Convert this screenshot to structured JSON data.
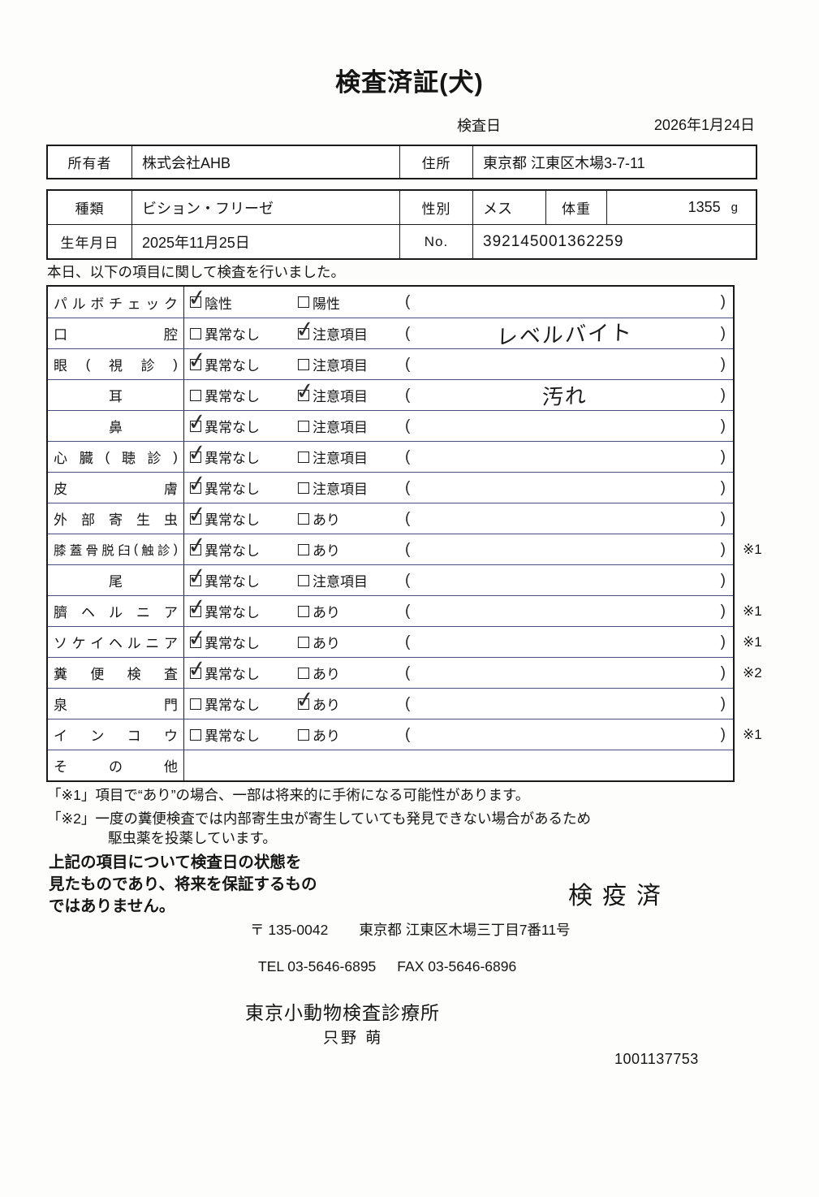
{
  "page": {
    "title": "検査済証(犬)",
    "inspection_date_label": "検査日",
    "inspection_date_value": "2026年1月24日"
  },
  "owner": {
    "owner_label": "所有者",
    "owner_value": "株式会社AHB",
    "address_label": "住所",
    "address_value": "東京都 江東区木場3-7-11"
  },
  "pet": {
    "breed_label": "種類",
    "breed_value": "ビション・フリーゼ",
    "sex_label": "性別",
    "sex_value": "メス",
    "weight_label": "体重",
    "weight_value": "1355",
    "weight_unit": "g",
    "birthdate_label": "生年月日",
    "birthdate_value": "2025年11月25日",
    "no_label": "No.",
    "no_value": "392145001362259"
  },
  "intro_text": "本日、以下の項目に関して検査を行いました。",
  "checklist": {
    "paren_open": "(",
    "paren_close": ")",
    "rows": [
      {
        "item": "パルボチェック",
        "opt1": "陰性",
        "opt1_checked": true,
        "opt2": "陽性",
        "opt2_checked": false,
        "note": "",
        "ref": "",
        "has_parens": true
      },
      {
        "item": "口腔",
        "opt1": "異常なし",
        "opt1_checked": false,
        "opt2": "注意項目",
        "opt2_checked": true,
        "note": "レベルバイト",
        "ref": "",
        "has_parens": true
      },
      {
        "item": "眼(視診)",
        "opt1": "異常なし",
        "opt1_checked": true,
        "opt2": "注意項目",
        "opt2_checked": false,
        "note": "",
        "ref": "",
        "has_parens": true
      },
      {
        "item": "耳",
        "opt1": "異常なし",
        "opt1_checked": false,
        "opt2": "注意項目",
        "opt2_checked": true,
        "note": "汚れ",
        "ref": "",
        "has_parens": true
      },
      {
        "item": "鼻",
        "opt1": "異常なし",
        "opt1_checked": true,
        "opt2": "注意項目",
        "opt2_checked": false,
        "note": "",
        "ref": "",
        "has_parens": true
      },
      {
        "item": "心臓(聴診)",
        "opt1": "異常なし",
        "opt1_checked": true,
        "opt2": "注意項目",
        "opt2_checked": false,
        "note": "",
        "ref": "",
        "has_parens": true
      },
      {
        "item": "皮膚",
        "opt1": "異常なし",
        "opt1_checked": true,
        "opt2": "注意項目",
        "opt2_checked": false,
        "note": "",
        "ref": "",
        "has_parens": true
      },
      {
        "item": "外部寄生虫",
        "opt1": "異常なし",
        "opt1_checked": true,
        "opt2": "あり",
        "opt2_checked": false,
        "note": "",
        "ref": "",
        "has_parens": true
      },
      {
        "item": "膝蓋骨脱臼(触診)",
        "opt1": "異常なし",
        "opt1_checked": true,
        "opt2": "あり",
        "opt2_checked": false,
        "note": "",
        "ref": "※1",
        "has_parens": true
      },
      {
        "item": "尾",
        "opt1": "異常なし",
        "opt1_checked": true,
        "opt2": "注意項目",
        "opt2_checked": false,
        "note": "",
        "ref": "",
        "has_parens": true
      },
      {
        "item": "臍ヘルニア",
        "opt1": "異常なし",
        "opt1_checked": true,
        "opt2": "あり",
        "opt2_checked": false,
        "note": "",
        "ref": "※1",
        "has_parens": true
      },
      {
        "item": "ソケイヘルニア",
        "opt1": "異常なし",
        "opt1_checked": true,
        "opt2": "あり",
        "opt2_checked": false,
        "note": "",
        "ref": "※1",
        "has_parens": true
      },
      {
        "item": "糞便検査",
        "opt1": "異常なし",
        "opt1_checked": true,
        "opt2": "あり",
        "opt2_checked": false,
        "note": "",
        "ref": "※2",
        "has_parens": true
      },
      {
        "item": "泉門",
        "opt1": "異常なし",
        "opt1_checked": false,
        "opt2": "あり",
        "opt2_checked": true,
        "note": "",
        "ref": "",
        "has_parens": true
      },
      {
        "item": "インコウ",
        "opt1": "異常なし",
        "opt1_checked": false,
        "opt2": "あり",
        "opt2_checked": false,
        "note": "",
        "ref": "※1",
        "has_parens": true
      },
      {
        "item": "その他",
        "opt1": "",
        "opt1_checked": false,
        "opt2": "",
        "opt2_checked": false,
        "note": "",
        "ref": "",
        "has_parens": false
      }
    ]
  },
  "footnotes": {
    "line1": "「※1」項目で“あり”の場合、一部は将来的に手術になる可能性があります。",
    "line2": "「※2」一度の糞便検査では内部寄生虫が寄生していても発見できない場合があるため",
    "line3": "駆虫薬を投薬しています。"
  },
  "statement": {
    "line1": "上記の項目について検査日の状態を",
    "line2": "見たものであり、将来を保証するもの",
    "line3": "ではありません。"
  },
  "certifier": {
    "stamp": "検疫済",
    "postal": "〒 135-0042",
    "address": "東京都 江東区木場三丁目7番11号",
    "tel": "TEL 03-5646-6895",
    "fax": "FAX 03-5646-6896",
    "clinic_name": "東京小動物検査診療所",
    "examiner_name": "只野 萌",
    "doc_number": "1001137753"
  }
}
